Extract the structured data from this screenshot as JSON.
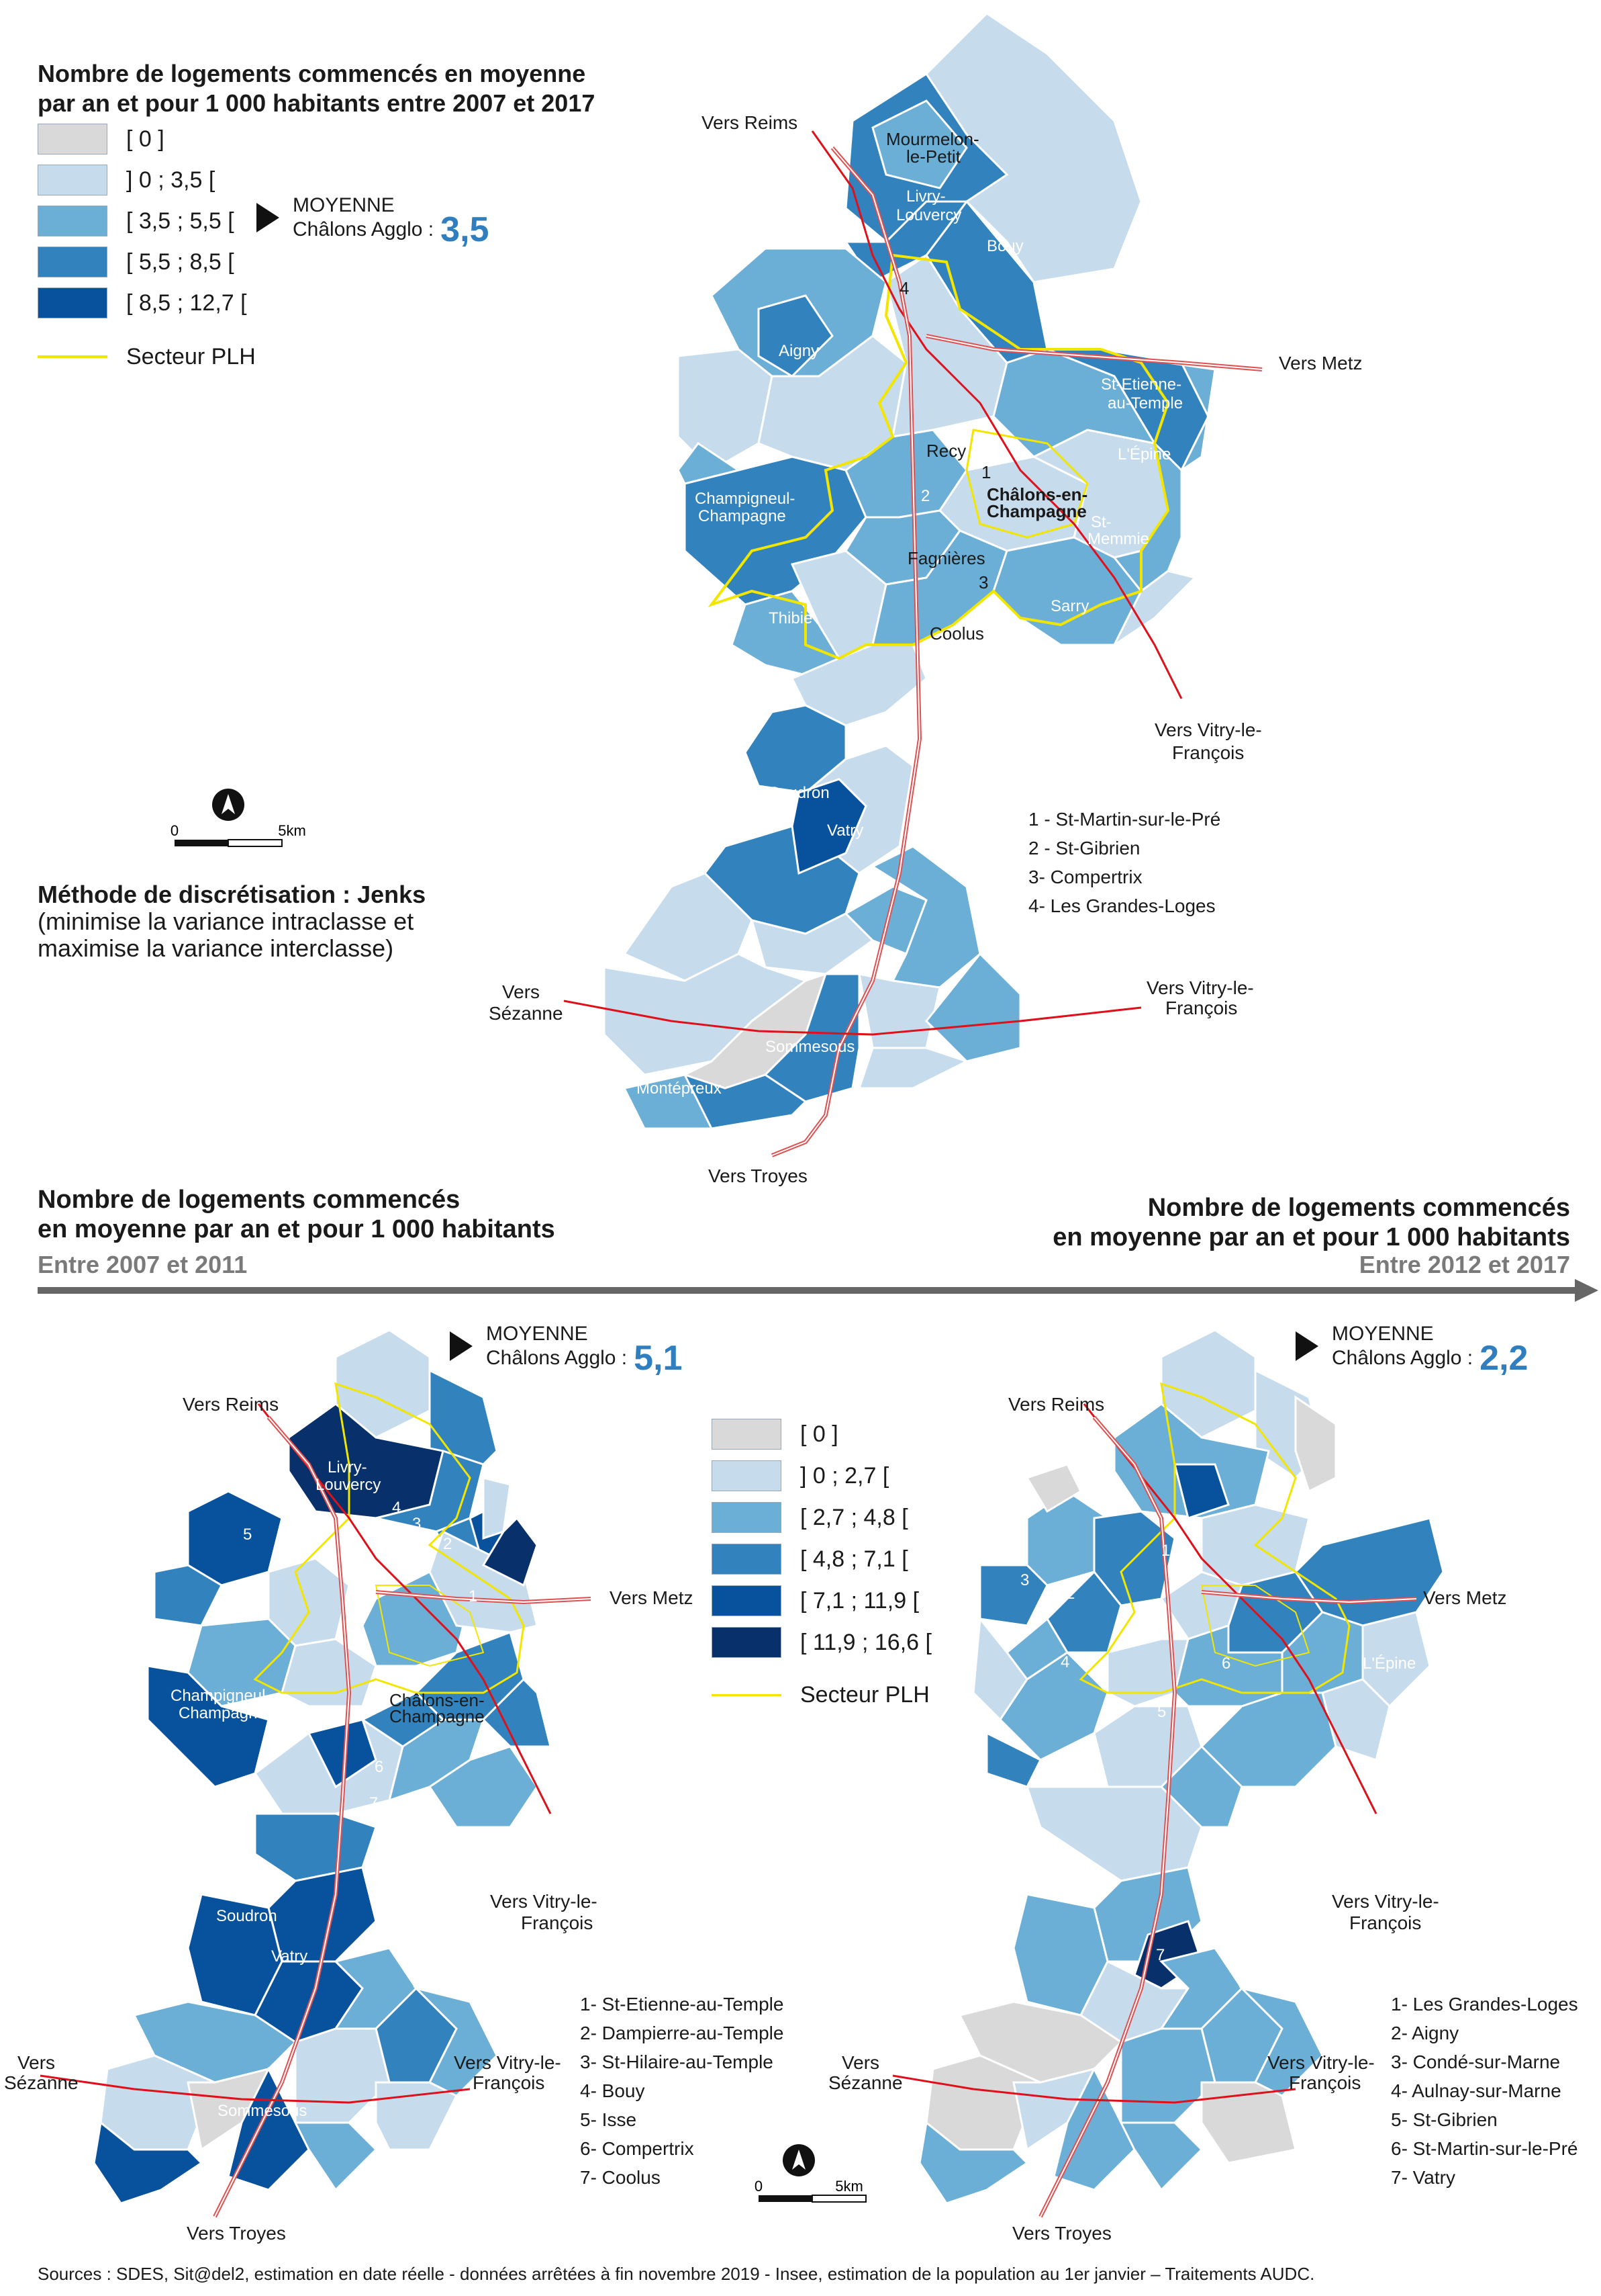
{
  "legend_main": {
    "title_line1": "Nombre de logements commencés en moyenne",
    "title_line2": "par an et pour 1 000 habitants entre 2007 et 2017",
    "classes": [
      {
        "label": "[ 0 ]",
        "color": "#d9d9d9"
      },
      {
        "label": "] 0 ; 3,5 [",
        "color": "#c6dbec"
      },
      {
        "label": "[ 3,5 ; 5,5 [",
        "color": "#6baed6"
      },
      {
        "label": "[ 5,5 ; 8,5 [",
        "color": "#3182bd"
      },
      {
        "label": "[ 8,5 ; 12,7 [",
        "color": "#08519c"
      }
    ],
    "plh_label": "Secteur PLH",
    "plh_color": "#f2e600"
  },
  "avg_main": {
    "line1": "MOYENNE",
    "line2": "Châlons Agglo :",
    "value": "3,5"
  },
  "scale_main": {
    "zero": "0",
    "five": "5km"
  },
  "method": {
    "label": "Méthode de discrétisation :",
    "name": "Jenks",
    "line2": "(minimise la variance intraclasse et",
    "line3": "maximise la variance interclasse)"
  },
  "main_map": {
    "roads": [
      "Vers Reims",
      "Vers Metz",
      "Vers Vitry-le-",
      "François",
      "Vers",
      "Sézanne",
      "Vers Vitry-le-",
      "François",
      "Vers Troyes"
    ],
    "communes": [
      "Mourmelon-",
      "le-Petit",
      "Livry-",
      "Louvercy",
      "Bouy",
      "Aigny",
      "St-Etienne-",
      "au-Temple",
      "L'Épine",
      "Recy",
      "Champigneul-",
      "Champagne",
      "Châlons-en-",
      "Champagne",
      "St-",
      "Memmie",
      "Fagnières",
      "Sarry",
      "Thibie",
      "Coolus",
      "Soudron",
      "Vatry",
      "Sommesous",
      "Montépreux"
    ],
    "numbers": [
      "1",
      "2",
      "3",
      "4"
    ],
    "notes": [
      "1 - St-Martin-sur-le-Pré",
      "2 - St-Gibrien",
      "3- Compertrix",
      "4- Les Grandes-Loges"
    ]
  },
  "section_left": {
    "title_line1": "Nombre de logements commencés",
    "title_line2": "en moyenne par an et pour 1 000 habitants",
    "period": "Entre 2007 et 2011"
  },
  "section_right": {
    "title_line1": "Nombre de logements commencés",
    "title_line2": "en moyenne par an et pour 1 000 habitants",
    "period": "Entre 2012 et 2017"
  },
  "avg_left": {
    "line1": "MOYENNE",
    "line2": "Châlons Agglo :",
    "value": "5,1"
  },
  "avg_right": {
    "line1": "MOYENNE",
    "line2": "Châlons Agglo :",
    "value": "2,2"
  },
  "legend_bottom": {
    "classes": [
      {
        "label": "[ 0 ]",
        "color": "#d9d9d9"
      },
      {
        "label": "] 0 ; 2,7 [",
        "color": "#c6dbec"
      },
      {
        "label": "[ 2,7 ; 4,8 [",
        "color": "#6baed6"
      },
      {
        "label": "[ 4,8 ; 7,1 [",
        "color": "#3182bd"
      },
      {
        "label": "[ 7,1 ; 11,9 [",
        "color": "#08519c"
      },
      {
        "label": "[ 11,9 ; 16,6 [",
        "color": "#08306b"
      }
    ],
    "plh_label": "Secteur PLH"
  },
  "left_map": {
    "roads": [
      "Vers Reims",
      "Vers Metz",
      "Vers Vitry-le-",
      "François",
      "Vers",
      "Sézanne",
      "Vers Vitry-le-",
      "François",
      "Vers Troyes"
    ],
    "communes": [
      "Livry-",
      "Louvercy",
      "Champigneul-",
      "Champagne",
      "Châlons-en-",
      "Champagne",
      "Soudron",
      "Vatry",
      "Sommesous"
    ],
    "numbers": [
      "1",
      "2",
      "3",
      "4",
      "5",
      "6",
      "7"
    ],
    "notes": [
      "1- St-Etienne-au-Temple",
      "2- Dampierre-au-Temple",
      "3- St-Hilaire-au-Temple",
      "4- Bouy",
      "5- Isse",
      "6- Compertrix",
      "7- Coolus"
    ]
  },
  "right_map": {
    "roads": [
      "Vers Reims",
      "Vers Metz",
      "Vers Vitry-le-",
      "François",
      "Vers",
      "Sézanne",
      "Vers Vitry-le-",
      "François",
      "Vers Troyes"
    ],
    "communes": [
      "L'Épine"
    ],
    "numbers": [
      "1",
      "2",
      "3",
      "4",
      "5",
      "6",
      "7"
    ],
    "notes": [
      "1- Les Grandes-Loges",
      "2- Aigny",
      "3- Condé-sur-Marne",
      "4- Aulnay-sur-Marne",
      "5- St-Gibrien",
      "6- St-Martin-sur-le-Pré",
      "7- Vatry"
    ]
  },
  "scale_bottom": {
    "zero": "0",
    "five": "5km"
  },
  "source": "Sources : SDES, Sit@del2, estimation en date réelle - données arrêtées à fin novembre 2019 - Insee, estimation de la population au 1er janvier – Traitements AUDC."
}
